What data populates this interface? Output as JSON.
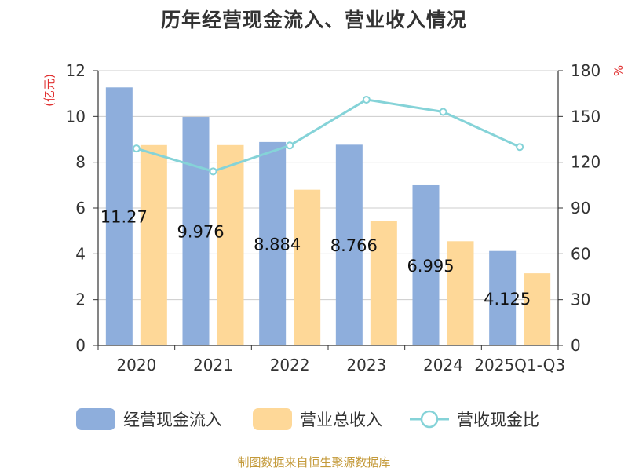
{
  "chart_data": {
    "type": "bar",
    "title": "历年经营现金流入、营业收入情况",
    "left_unit": "(亿元)",
    "right_unit": "%",
    "categories": [
      "2020",
      "2021",
      "2022",
      "2023",
      "2024",
      "2025Q1-Q3"
    ],
    "series": [
      {
        "name": "经营现金流入",
        "type": "bar",
        "axis": "left",
        "color": "#8eaedc",
        "values": [
          11.27,
          9.976,
          8.884,
          8.766,
          6.995,
          4.125
        ],
        "labels": [
          "11.27",
          "9.976",
          "8.884",
          "8.766",
          "6.995",
          "4.125"
        ]
      },
      {
        "name": "营业总收入",
        "type": "bar",
        "axis": "left",
        "color": "#fed898",
        "values": [
          8.75,
          8.75,
          6.8,
          5.45,
          4.55,
          3.15
        ]
      },
      {
        "name": "营收现金比",
        "type": "line",
        "axis": "right",
        "color": "#85d3d8",
        "values": [
          129,
          114,
          131,
          161,
          153,
          130
        ]
      }
    ],
    "ylim_left": [
      0,
      12
    ],
    "yticks_left": [
      0,
      2,
      4,
      6,
      8,
      10,
      12
    ],
    "ylim_right": [
      0,
      180
    ],
    "yticks_right": [
      0,
      30,
      60,
      90,
      120,
      150,
      180
    ],
    "grid": true,
    "legend_position": "bottom"
  },
  "footer": {
    "source": "制图数据来自恒生聚源数据库"
  }
}
